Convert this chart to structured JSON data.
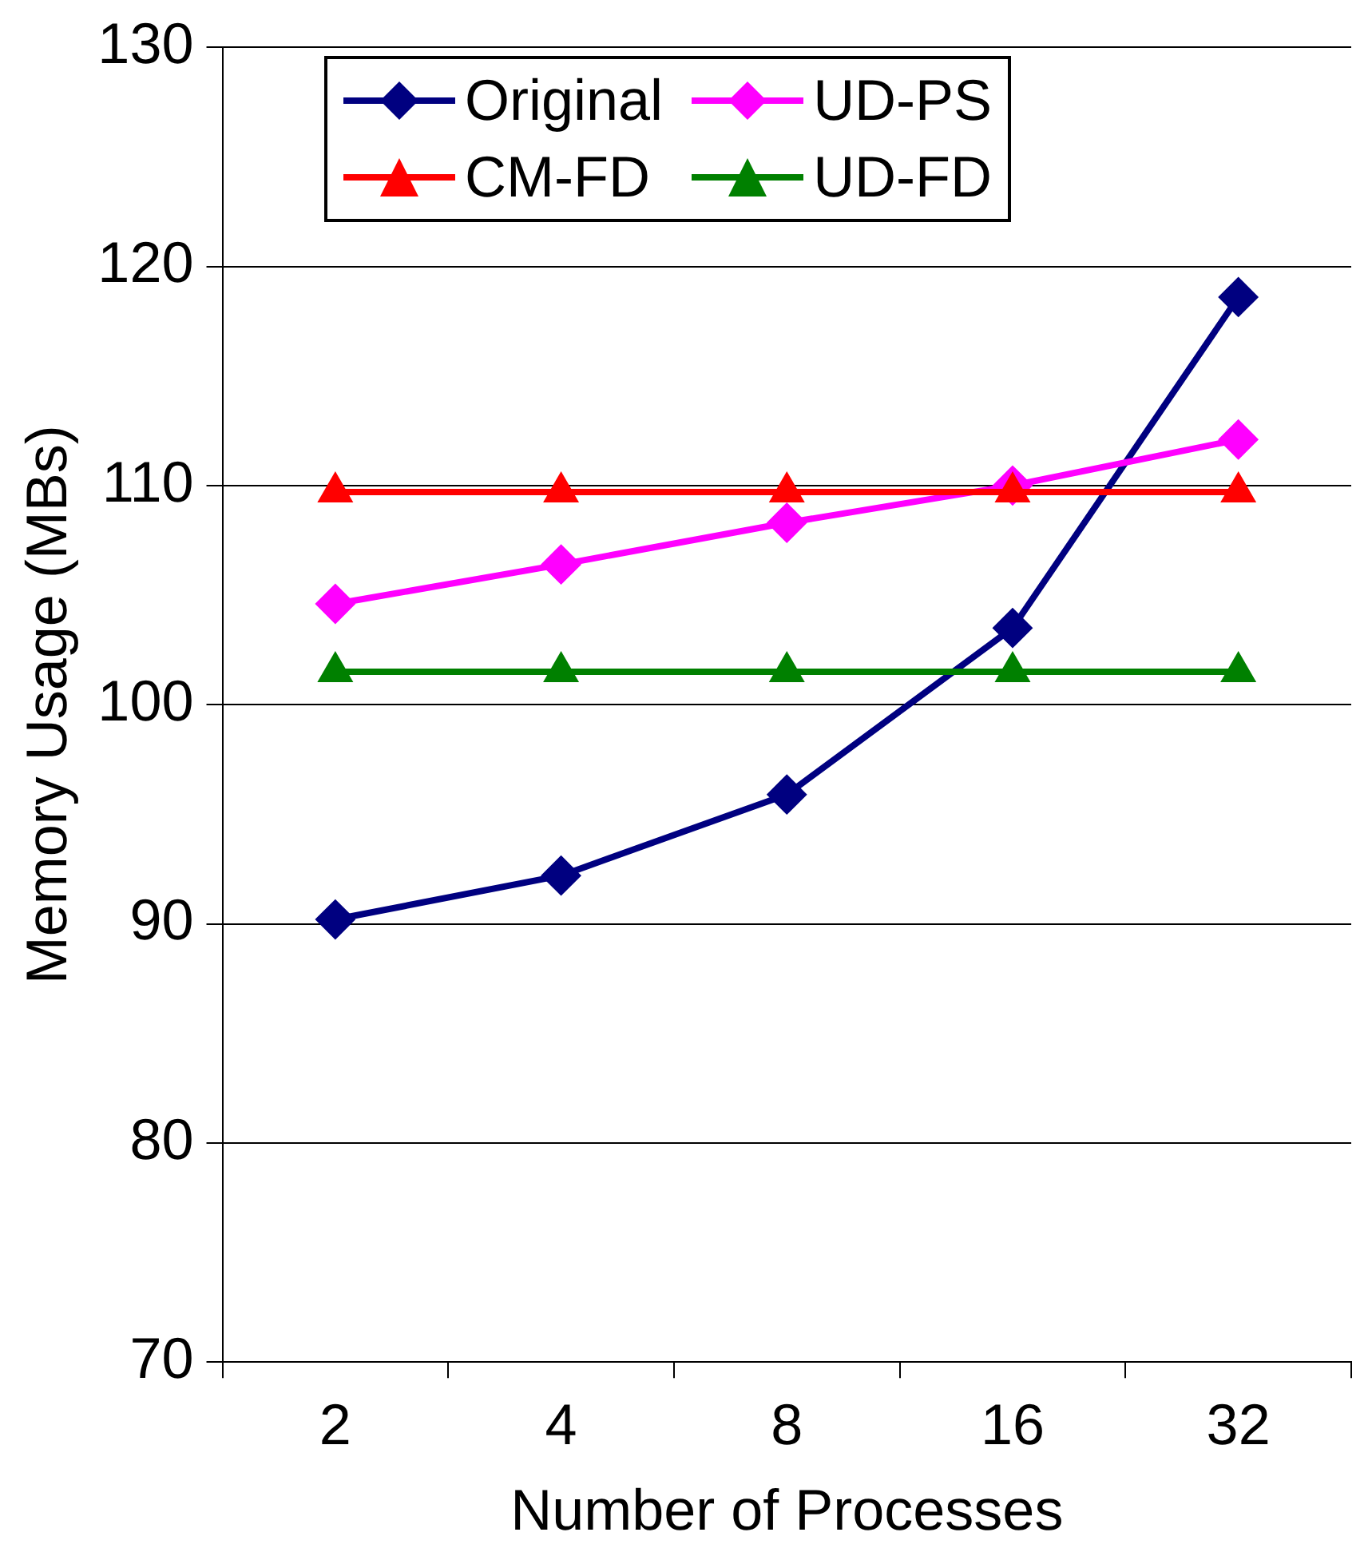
{
  "chart_data": {
    "type": "line",
    "xlabel": "Number of Processes",
    "ylabel": "Memory Usage (MBs)",
    "categories": [
      "2",
      "4",
      "8",
      "16",
      "32"
    ],
    "series": [
      {
        "name": "Original",
        "color": "#000080",
        "marker": "diamond",
        "values": [
          90.2,
          92.2,
          95.9,
          103.5,
          118.6
        ]
      },
      {
        "name": "UD-PS",
        "color": "#ff00ff",
        "marker": "diamond",
        "values": [
          104.6,
          106.4,
          108.3,
          110.0,
          112.1
        ]
      },
      {
        "name": "CM-FD",
        "color": "#ff0000",
        "marker": "triangle",
        "values": [
          109.7,
          109.7,
          109.7,
          109.7,
          109.7
        ]
      },
      {
        "name": "UD-FD",
        "color": "#008000",
        "marker": "triangle",
        "values": [
          101.5,
          101.5,
          101.5,
          101.5,
          101.5
        ]
      }
    ],
    "ylim": [
      70,
      130
    ],
    "yticks": [
      70,
      80,
      90,
      100,
      110,
      120,
      130
    ],
    "grid": "y",
    "legend": "top left"
  }
}
